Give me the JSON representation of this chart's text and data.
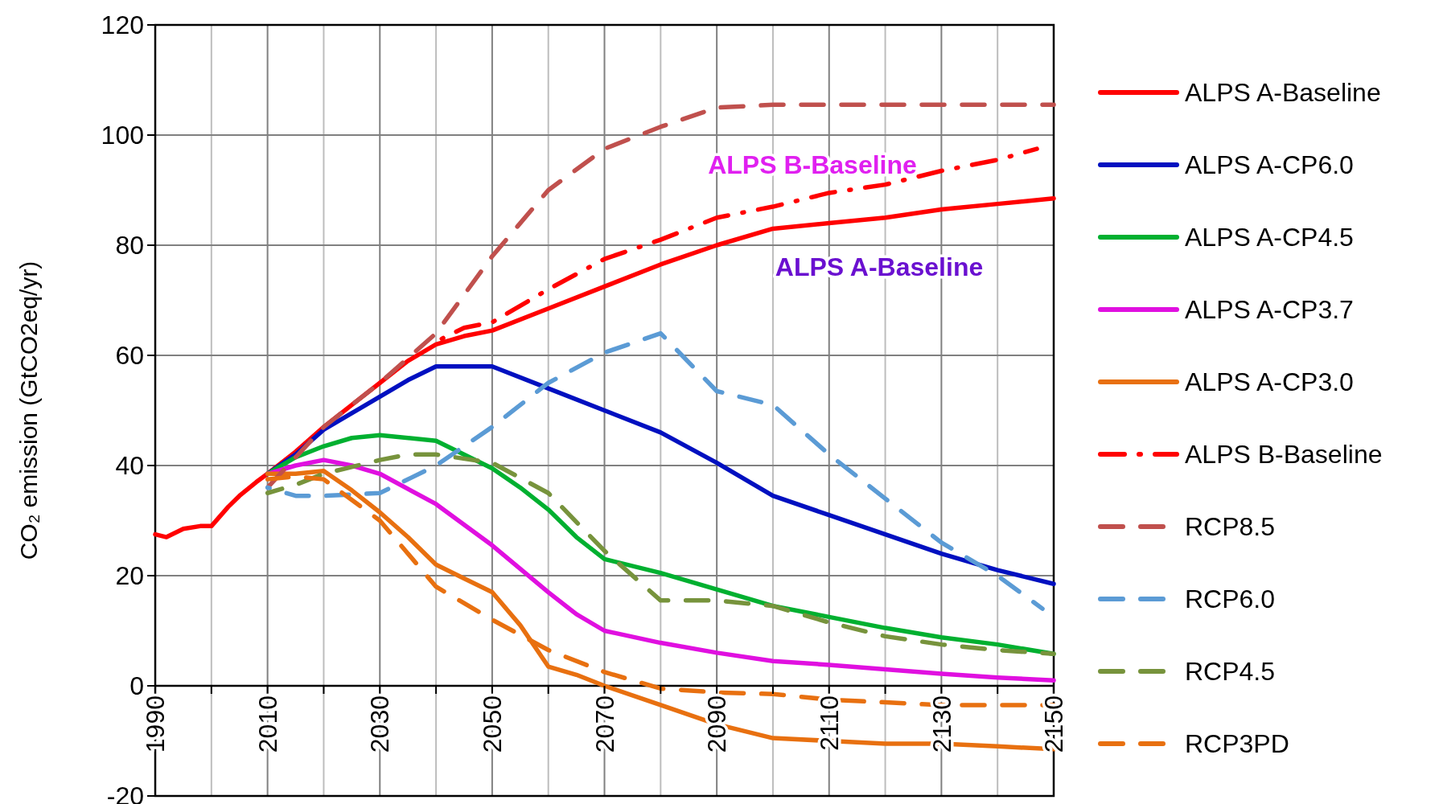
{
  "chart_data": {
    "type": "line",
    "ylabel": "CO₂ emission (GtCO2eq/yr)",
    "xlim": [
      1990,
      2150
    ],
    "ylim": [
      -20,
      120
    ],
    "xticks": [
      1990,
      {
        "value": 2000,
        "label": null
      },
      2010,
      {
        "value": 2020,
        "label": null
      },
      2030,
      {
        "value": 2040,
        "label": null
      },
      2050,
      {
        "value": 2060,
        "label": null
      },
      2070,
      {
        "value": 2080,
        "label": null
      },
      2090,
      {
        "value": 2100,
        "label": null
      },
      2110,
      {
        "value": 2120,
        "label": null
      },
      2130,
      {
        "value": 2140,
        "label": null
      },
      2150
    ],
    "yticks": [
      -20,
      0,
      20,
      40,
      60,
      80,
      100,
      120
    ],
    "grid": true,
    "legend": "right",
    "annotations": [
      "ALPS B-Baseline",
      "ALPS A-Baseline"
    ],
    "series": [
      {
        "name": "ALPS A-Baseline",
        "color": "#ff0000",
        "line_style": "solid",
        "x": [
          1990,
          1992,
          1995,
          1998,
          2000,
          2003,
          2005,
          2008,
          2010,
          2015,
          2020,
          2025,
          2030,
          2035,
          2040,
          2045,
          2050,
          2060,
          2070,
          2080,
          2090,
          2100,
          2110,
          2120,
          2130,
          2140,
          2150
        ],
        "values": [
          27.5,
          27,
          28.5,
          29,
          29,
          32.5,
          34.5,
          37,
          38.5,
          42.5,
          47,
          51,
          55,
          59,
          62,
          63.5,
          64.5,
          68.5,
          72.5,
          76.5,
          80,
          83,
          84,
          85,
          86.5,
          87.5,
          88.5
        ]
      },
      {
        "name": "ALPS A-CP6.0",
        "color": "#0010c0",
        "line_style": "solid",
        "x": [
          2010,
          2015,
          2020,
          2025,
          2030,
          2035,
          2040,
          2050,
          2060,
          2070,
          2080,
          2090,
          2100,
          2110,
          2120,
          2130,
          2140,
          2150
        ],
        "values": [
          38.5,
          42,
          46.5,
          49.5,
          52.5,
          55.5,
          58,
          58,
          54,
          50,
          46,
          40.5,
          34.5,
          31,
          27.5,
          24,
          21,
          18.5
        ]
      },
      {
        "name": "ALPS A-CP4.5",
        "color": "#00b030",
        "line_style": "solid",
        "x": [
          2010,
          2015,
          2020,
          2025,
          2030,
          2040,
          2050,
          2055,
          2060,
          2065,
          2070,
          2080,
          2090,
          2100,
          2110,
          2120,
          2130,
          2140,
          2150
        ],
        "values": [
          38.5,
          41.5,
          43.5,
          45,
          45.5,
          44.5,
          39.5,
          36,
          32,
          27,
          23,
          20.5,
          17.5,
          14.5,
          12.5,
          10.5,
          8.8,
          7.5,
          5.8
        ]
      },
      {
        "name": "ALPS A-CP3.7",
        "color": "#e010e0",
        "line_style": "solid",
        "x": [
          2010,
          2015,
          2020,
          2025,
          2030,
          2040,
          2050,
          2060,
          2065,
          2070,
          2080,
          2090,
          2100,
          2110,
          2120,
          2130,
          2140,
          2150
        ],
        "values": [
          38.5,
          40,
          41,
          40,
          38.5,
          33,
          25.5,
          17,
          13,
          10,
          7.8,
          6,
          4.5,
          3.8,
          3,
          2.2,
          1.5,
          1
        ]
      },
      {
        "name": "ALPS A-CP3.0",
        "color": "#e87010",
        "line_style": "solid",
        "x": [
          2010,
          2015,
          2020,
          2025,
          2030,
          2035,
          2040,
          2045,
          2050,
          2055,
          2060,
          2065,
          2070,
          2080,
          2090,
          2100,
          2110,
          2120,
          2130,
          2140,
          2150
        ],
        "values": [
          38.5,
          38.5,
          39,
          35.5,
          31.5,
          27,
          22,
          19.5,
          17,
          11,
          3.5,
          2,
          0,
          -3.5,
          -7,
          -9.5,
          -10,
          -10.5,
          -10.5,
          -11,
          -11.5
        ]
      },
      {
        "name": "ALPS B-Baseline",
        "color": "#ff0000",
        "line_style": "dashdot",
        "x": [
          2040,
          2045,
          2050,
          2060,
          2070,
          2080,
          2090,
          2100,
          2110,
          2120,
          2130,
          2140,
          2147
        ],
        "values": [
          62.5,
          65,
          66,
          72,
          77.5,
          81,
          85,
          87,
          89.5,
          91,
          93.5,
          95.5,
          97.5
        ]
      },
      {
        "name": "RCP8.5",
        "color": "#c0504d",
        "line_style": "dashed",
        "x": [
          2010,
          2020,
          2030,
          2040,
          2050,
          2060,
          2070,
          2080,
          2090,
          2100,
          2110,
          2120,
          2130,
          2140,
          2150
        ],
        "values": [
          36,
          47,
          55,
          64,
          78,
          90,
          97.5,
          101.5,
          105,
          105.5,
          105.5,
          105.5,
          105.5,
          105.5,
          105.5
        ]
      },
      {
        "name": "RCP6.0",
        "color": "#5b9bd5",
        "line_style": "dashed",
        "x": [
          2010,
          2015,
          2020,
          2030,
          2040,
          2050,
          2060,
          2070,
          2080,
          2090,
          2100,
          2110,
          2120,
          2130,
          2140,
          2148
        ],
        "values": [
          36,
          34.5,
          34.5,
          35,
          40,
          47,
          55,
          60.5,
          64,
          53.5,
          51,
          42,
          34,
          26,
          20,
          14
        ]
      },
      {
        "name": "RCP4.5",
        "color": "#77933c",
        "line_style": "dashed",
        "x": [
          2010,
          2015,
          2020,
          2030,
          2035,
          2040,
          2050,
          2060,
          2070,
          2080,
          2090,
          2100,
          2110,
          2120,
          2130,
          2140,
          2150
        ],
        "values": [
          35,
          36.5,
          38.5,
          41,
          42,
          42,
          40.5,
          35,
          24.5,
          15.5,
          15.5,
          14.5,
          11.5,
          9,
          7.5,
          6.5,
          5.8
        ]
      },
      {
        "name": "RCP3PD",
        "color": "#e87010",
        "line_style": "dashed",
        "x": [
          2010,
          2015,
          2020,
          2030,
          2040,
          2050,
          2060,
          2070,
          2080,
          2090,
          2100,
          2110,
          2120,
          2130,
          2140,
          2150
        ],
        "values": [
          37.5,
          38,
          37.5,
          30,
          18,
          12,
          6.5,
          2.5,
          -0.5,
          -1.2,
          -1.5,
          -2.5,
          -3,
          -3.5,
          -3.5,
          -3.5
        ]
      }
    ]
  }
}
